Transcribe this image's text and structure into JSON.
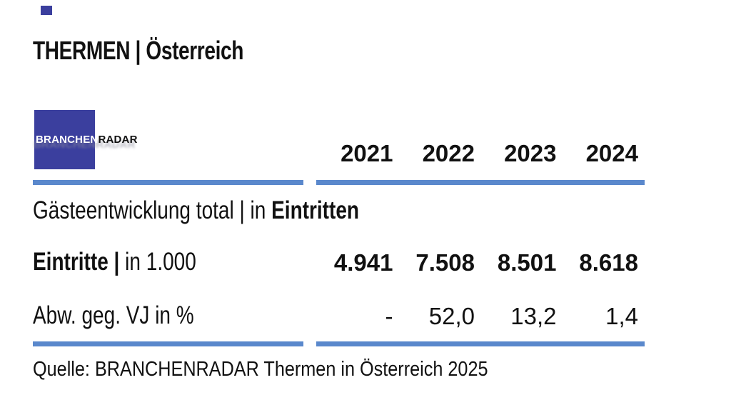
{
  "title": "THERMEN | Österreich",
  "logo": {
    "primary": "BRANCHEN",
    "secondary": "RADAR"
  },
  "colors": {
    "accent_bar": "#5a88cc",
    "logo_blue": "#3b3f9e",
    "text": "#111111"
  },
  "table": {
    "years": [
      "2021",
      "2022",
      "2023",
      "2024"
    ],
    "section": {
      "regular": "Gästeentwicklung total | in ",
      "bold": "Eintritten"
    },
    "rows": [
      {
        "label_bold": "Eintritte |",
        "label_regular": " in 1.000",
        "values": [
          "4.941",
          "7.508",
          "8.501",
          "8.618"
        ]
      },
      {
        "label_bold": "",
        "label_regular": "Abw. geg. VJ in %",
        "values": [
          "-",
          "52,0",
          "13,2",
          "1,4"
        ]
      }
    ]
  },
  "source": "Quelle: BRANCHENRADAR Thermen in Österreich 2025",
  "chart_data": {
    "type": "table",
    "title": "THERMEN | Österreich",
    "section": "Gästeentwicklung total | in Eintritten",
    "columns": [
      "2021",
      "2022",
      "2023",
      "2024"
    ],
    "rows": [
      {
        "label": "Eintritte | in 1.000",
        "values": [
          4941,
          7508,
          8501,
          8618
        ]
      },
      {
        "label": "Abw. geg. VJ in %",
        "values": [
          null,
          52.0,
          13.2,
          1.4
        ]
      }
    ],
    "source": "Quelle: BRANCHENRADAR Thermen in Österreich 2025"
  }
}
